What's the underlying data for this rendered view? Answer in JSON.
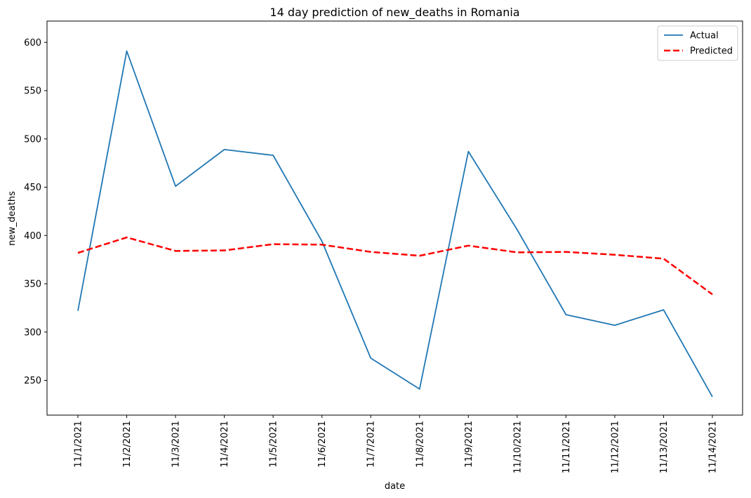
{
  "chart_data": {
    "type": "line",
    "title": "14 day prediction of new_deaths in Romania",
    "xlabel": "date",
    "ylabel": "new_deaths",
    "categories": [
      "11/1/2021",
      "11/2/2021",
      "11/3/2021",
      "11/4/2021",
      "11/5/2021",
      "11/6/2021",
      "11/7/2021",
      "11/8/2021",
      "11/9/2021",
      "11/10/2021",
      "11/11/2021",
      "11/12/2021",
      "11/13/2021",
      "11/14/2021"
    ],
    "yticks": [
      250,
      300,
      350,
      400,
      450,
      500,
      550,
      600
    ],
    "ylim": [
      214,
      622
    ],
    "grid": false,
    "legend_position": "top-right",
    "series": [
      {
        "name": "Actual",
        "color": "#1f77b4",
        "style": "solid",
        "values": [
          322,
          591,
          451,
          489,
          483,
          394,
          273,
          241,
          487,
          406,
          318,
          307,
          323,
          233
        ]
      },
      {
        "name": "Predicted",
        "color": "#ff0000",
        "style": "dashed",
        "values": [
          382,
          398,
          384,
          384.5,
          391,
          390.5,
          383,
          379,
          389.5,
          382.5,
          383,
          380,
          376,
          339
        ]
      }
    ]
  }
}
